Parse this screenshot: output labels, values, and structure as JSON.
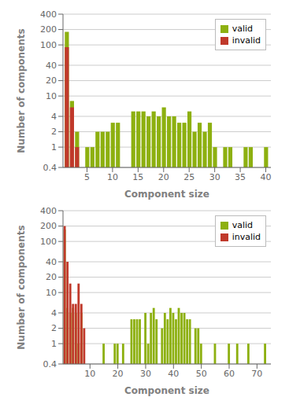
{
  "chart_data": [
    {
      "type": "bar",
      "xlabel": "Component size",
      "ylabel": "Number of components",
      "series": [
        {
          "name": "valid",
          "color": "#8db010",
          "x": [
            1,
            2,
            3,
            5,
            6,
            7,
            8,
            9,
            10,
            11,
            14,
            15,
            16,
            17,
            18,
            19,
            20,
            21,
            22,
            23,
            24,
            25,
            26,
            27,
            28,
            29,
            30,
            32,
            33,
            36,
            37,
            40
          ],
          "values": [
            180,
            8,
            2,
            1,
            1,
            2,
            2,
            2,
            3,
            3,
            5,
            5,
            5,
            4,
            5,
            4,
            6,
            4,
            4,
            3,
            3,
            5,
            2,
            3,
            2,
            3,
            1,
            1,
            1,
            1,
            1,
            1
          ]
        },
        {
          "name": "invalid",
          "color": "#c0392b",
          "x": [
            1,
            2,
            3
          ],
          "values": [
            90,
            6,
            1
          ]
        }
      ],
      "xlim": [
        0.3,
        41
      ],
      "xticks": [
        5,
        10,
        15,
        20,
        25,
        30,
        35,
        40
      ],
      "ylim": [
        0.4,
        400
      ],
      "yticks": [
        0.4,
        1,
        2,
        4,
        10,
        20,
        40,
        100,
        200,
        400
      ],
      "log": "y",
      "grid": true,
      "legend": "upper right"
    },
    {
      "type": "bar",
      "xlabel": "Component size",
      "ylabel": "Number of components",
      "series": [
        {
          "name": "valid",
          "color": "#8db010",
          "x": [
            1,
            2,
            3,
            4,
            5,
            6,
            7,
            15,
            19,
            20,
            22,
            25,
            26,
            27,
            28,
            30,
            31,
            32,
            33,
            34,
            36,
            37,
            38,
            39,
            40,
            41,
            42,
            43,
            44,
            45,
            46,
            48,
            49,
            50,
            55,
            60,
            63,
            67,
            73
          ],
          "values": [
            170,
            5,
            4,
            5,
            4,
            1,
            4,
            1,
            1,
            1,
            1,
            3,
            3,
            3,
            3,
            4,
            1,
            4,
            5,
            3,
            2,
            4,
            3,
            5,
            4,
            3,
            5,
            4,
            4,
            3,
            3,
            2,
            2,
            1,
            1,
            1,
            1,
            1,
            1
          ]
        },
        {
          "name": "invalid",
          "color": "#c0392b",
          "x": [
            1,
            2,
            3,
            4,
            5,
            6,
            7,
            8
          ],
          "values": [
            200,
            40,
            15,
            6,
            6,
            15,
            6,
            2
          ]
        }
      ],
      "xlim": [
        0.3,
        75
      ],
      "xticks": [
        10,
        20,
        30,
        40,
        50,
        60,
        70
      ],
      "ylim": [
        0.4,
        400
      ],
      "yticks": [
        0.4,
        1,
        2,
        4,
        10,
        20,
        40,
        100,
        200,
        400
      ],
      "log": "y",
      "grid": true,
      "legend": "upper right"
    }
  ]
}
